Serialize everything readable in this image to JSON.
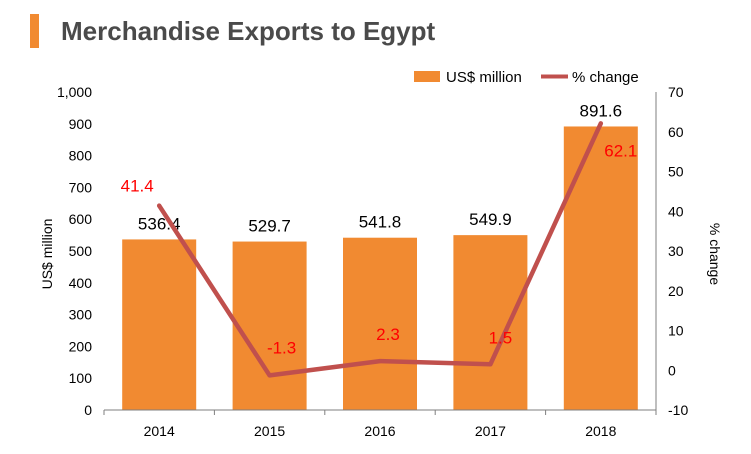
{
  "title": "Merchandise Exports to Egypt",
  "colors": {
    "accent": "#F18A31",
    "bar": "#F18A31",
    "line": "#C0504D",
    "line_label": "#FF0000",
    "title_text": "#4A4A4A",
    "axis": "#7F7F7F"
  },
  "chart_data": {
    "type": "bar",
    "title": "Merchandise Exports to Egypt",
    "categories": [
      "2014",
      "2015",
      "2016",
      "2017",
      "2018"
    ],
    "series": [
      {
        "name": "US$ million",
        "type": "bar",
        "axis": "left",
        "values": [
          536.4,
          529.7,
          541.8,
          549.9,
          891.6
        ],
        "labels": [
          "536.4",
          "529.7",
          "541.8",
          "549.9",
          "891.6"
        ]
      },
      {
        "name": "% change",
        "type": "line",
        "axis": "right",
        "values": [
          41.4,
          -1.3,
          2.3,
          1.5,
          62.1
        ],
        "labels": [
          "41.4",
          "-1.3",
          "2.3",
          "1.5",
          "62.1"
        ]
      }
    ],
    "ylabel": "US$ million",
    "y2label": "% change",
    "ylim": [
      0,
      1000
    ],
    "y2lim": [
      -10,
      70
    ],
    "yticks": [
      "0",
      "100",
      "200",
      "300",
      "400",
      "500",
      "600",
      "700",
      "800",
      "900",
      "1,000"
    ],
    "y2ticks": [
      "-10",
      "0",
      "10",
      "20",
      "30",
      "40",
      "50",
      "60",
      "70"
    ],
    "legend": "top-right",
    "grid": false
  }
}
